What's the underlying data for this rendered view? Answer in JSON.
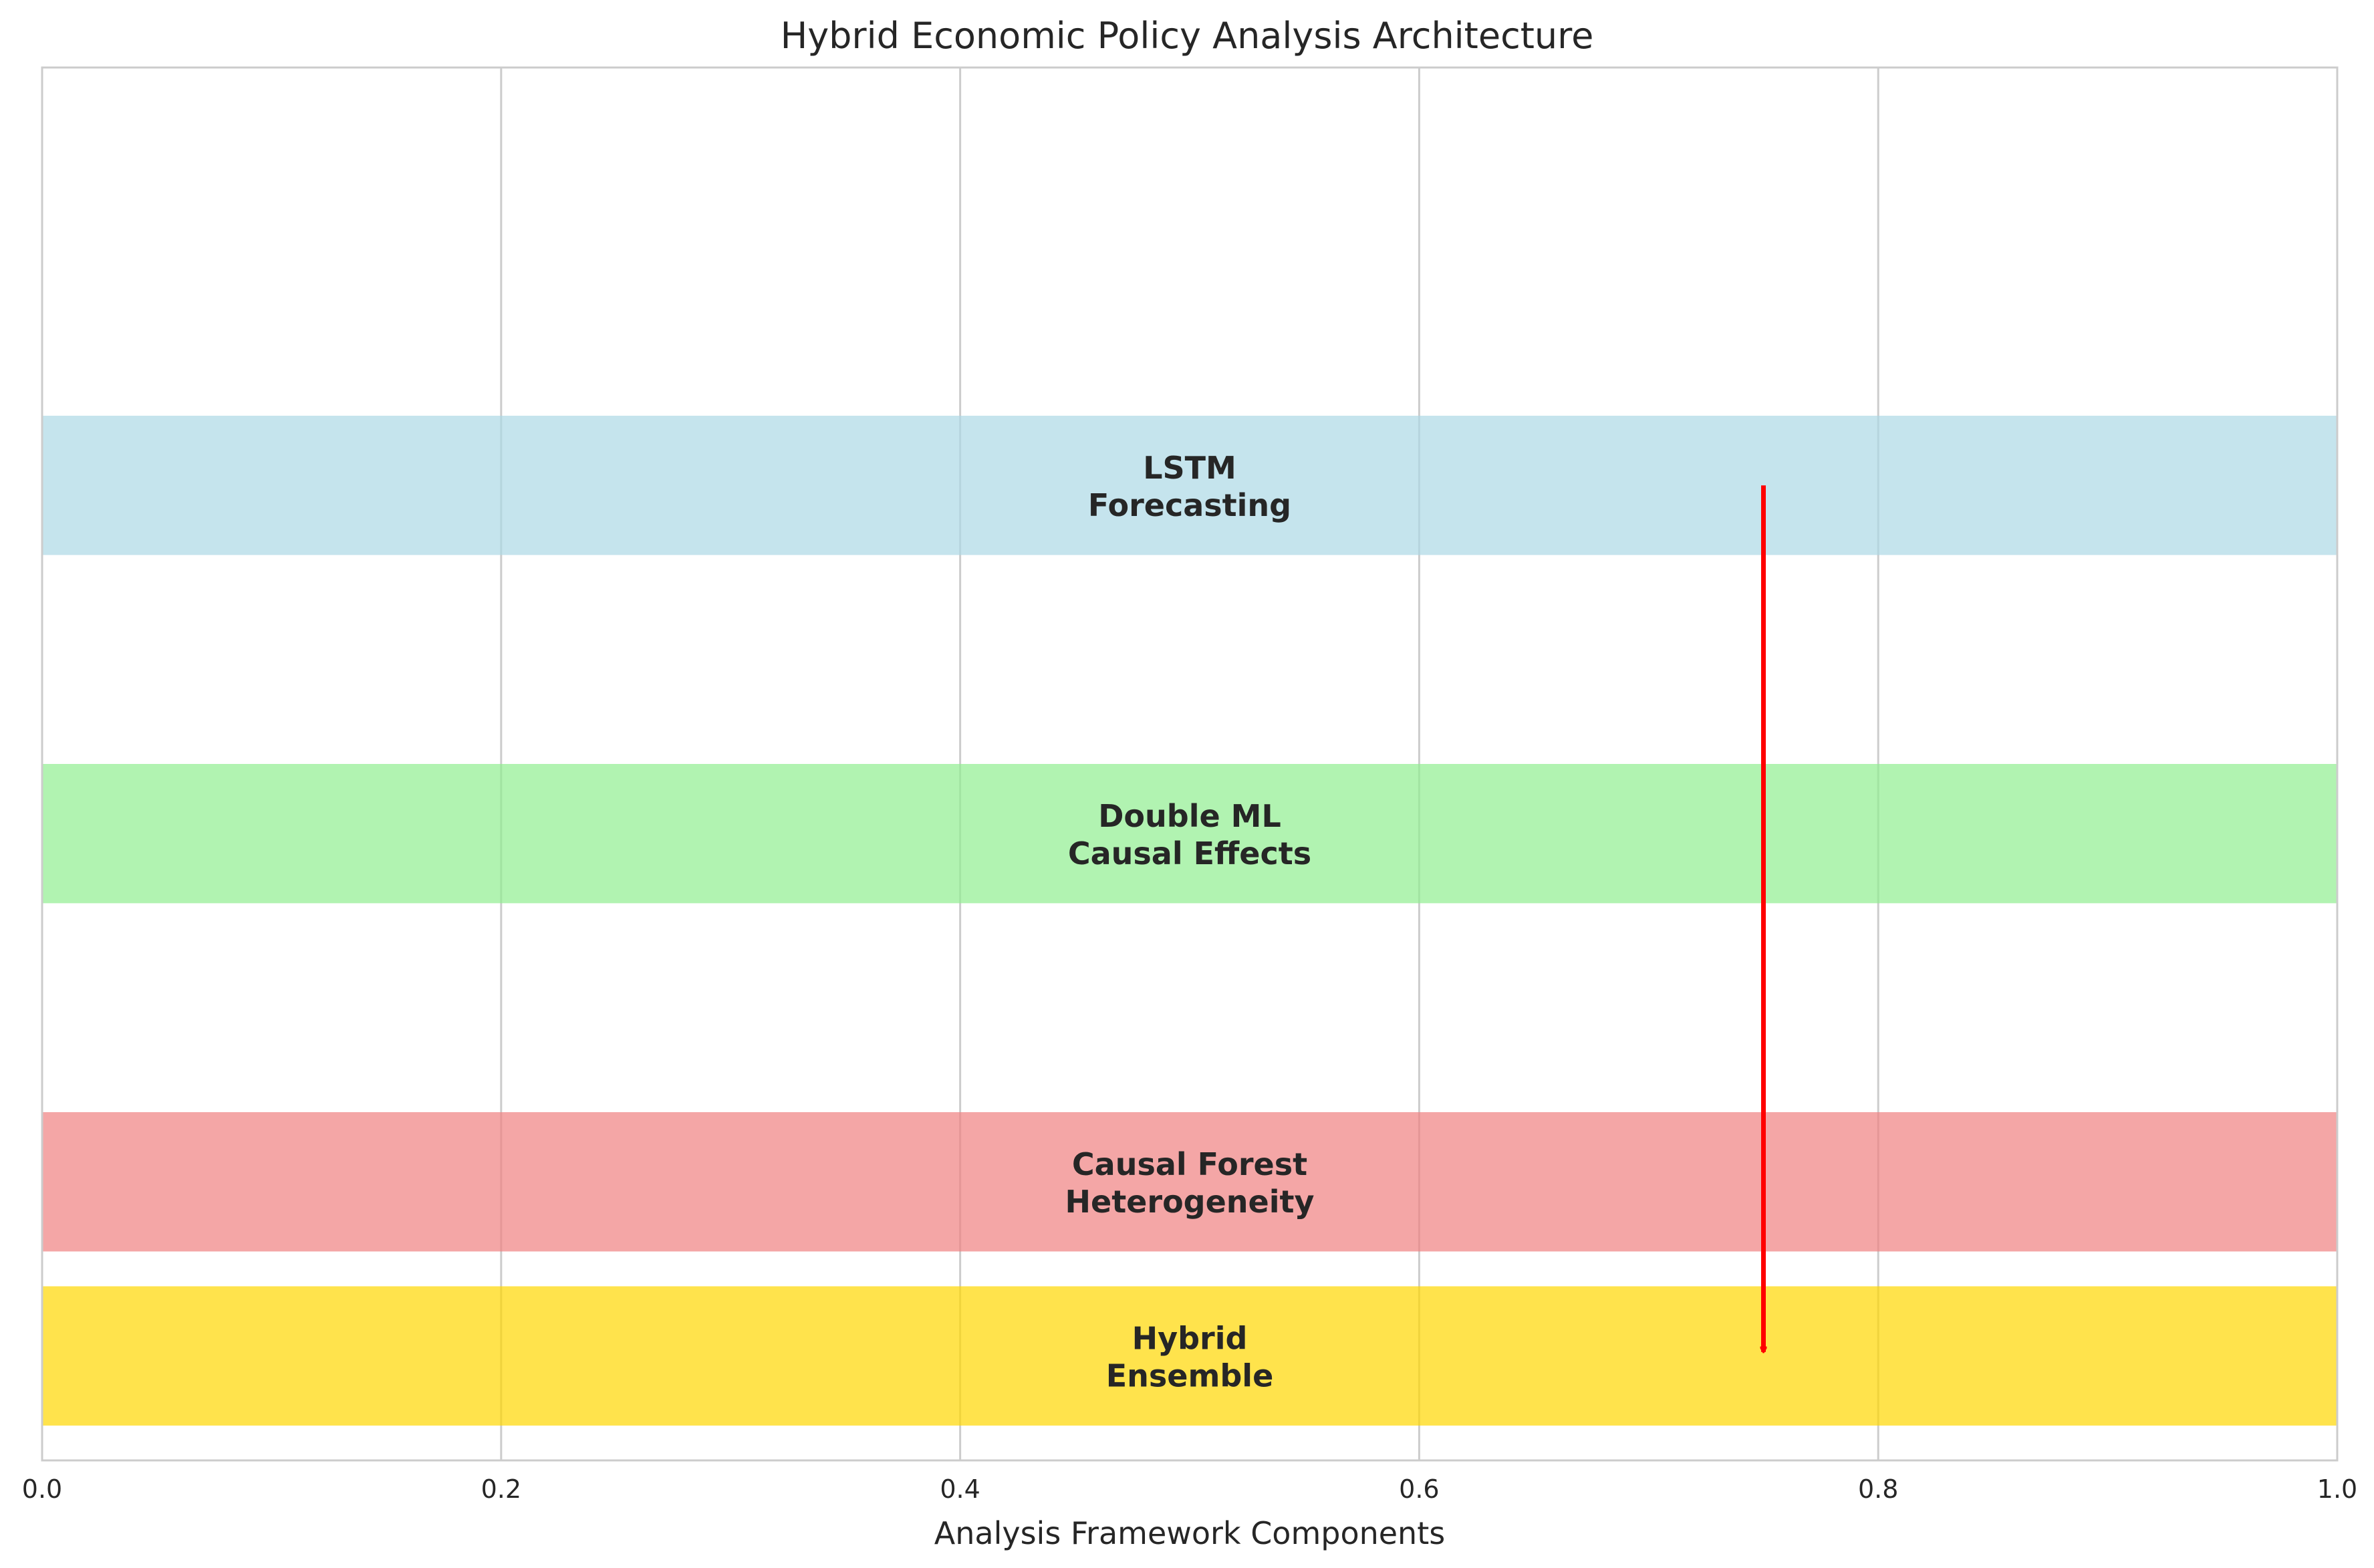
{
  "chart_data": {
    "type": "bar",
    "orientation": "horizontal",
    "title": "Hybrid Economic Policy Analysis Architecture",
    "xlabel": "Analysis Framework Components",
    "ylabel": "",
    "xlim": [
      0,
      1
    ],
    "ylim": [
      -0.8,
      3.2
    ],
    "x_ticks": [
      "0.0",
      "0.2",
      "0.4",
      "0.6",
      "0.8",
      "1.0"
    ],
    "y_ticks_visible": false,
    "grid": "vertical",
    "legend": "none",
    "bars": [
      {
        "label_line1": "LSTM",
        "label_line2": "Forecasting",
        "y": 2.0,
        "height": 0.4,
        "start": 0,
        "value": 1.0,
        "color": "#add8e6"
      },
      {
        "label_line1": "Double ML",
        "label_line2": "Causal Effects",
        "y": 1.0,
        "height": 0.4,
        "start": 0,
        "value": 1.0,
        "color": "#90ee90"
      },
      {
        "label_line1": "Causal Forest",
        "label_line2": "Heterogeneity",
        "y": 0.0,
        "height": 0.4,
        "start": 0,
        "value": 1.0,
        "color": "#f08080"
      },
      {
        "label_line1": "Hybrid",
        "label_line2": "Ensemble",
        "y": -0.5,
        "height": 0.4,
        "start": 0,
        "value": 1.0,
        "color": "#ffd700"
      }
    ],
    "arrow": {
      "x": 0.75,
      "y_start": 2.0,
      "y_end": -0.5,
      "color": "#ff0000"
    }
  }
}
